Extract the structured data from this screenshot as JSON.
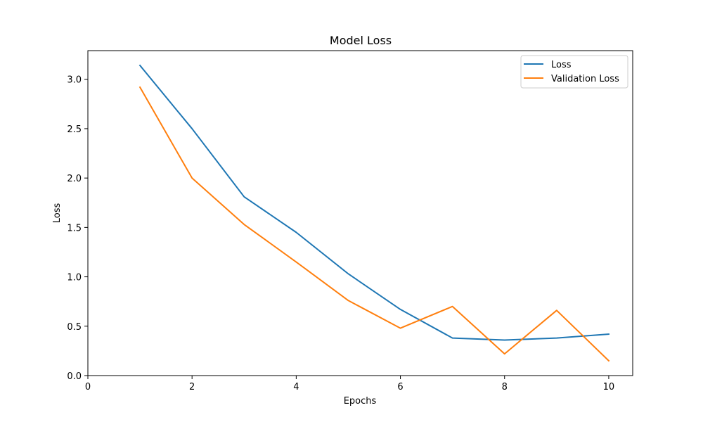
{
  "chart_data": {
    "type": "line",
    "title": "Model Loss",
    "xlabel": "Epochs",
    "ylabel": "Loss",
    "x": [
      1,
      2,
      3,
      4,
      5,
      6,
      7,
      8,
      9,
      10
    ],
    "xlim": [
      0,
      10.46
    ],
    "ylim": [
      0,
      3.29
    ],
    "xticks": [
      0,
      2,
      4,
      6,
      8,
      10
    ],
    "yticks": [
      0.0,
      0.5,
      1.0,
      1.5,
      2.0,
      2.5,
      3.0
    ],
    "xtick_labels": [
      "0",
      "2",
      "4",
      "6",
      "8",
      "10"
    ],
    "ytick_labels": [
      "0.0",
      "0.5",
      "1.0",
      "1.5",
      "2.0",
      "2.5",
      "3.0"
    ],
    "grid": false,
    "legend_position": "top-right",
    "series": [
      {
        "name": "Loss",
        "color": "#1f77b4",
        "values": [
          3.14,
          2.5,
          1.81,
          1.45,
          1.03,
          0.67,
          0.38,
          0.36,
          0.38,
          0.42
        ]
      },
      {
        "name": "Validation Loss",
        "color": "#ff7f0e",
        "values": [
          2.92,
          2.0,
          1.53,
          1.15,
          0.76,
          0.48,
          0.7,
          0.22,
          0.66,
          0.15
        ]
      }
    ]
  }
}
